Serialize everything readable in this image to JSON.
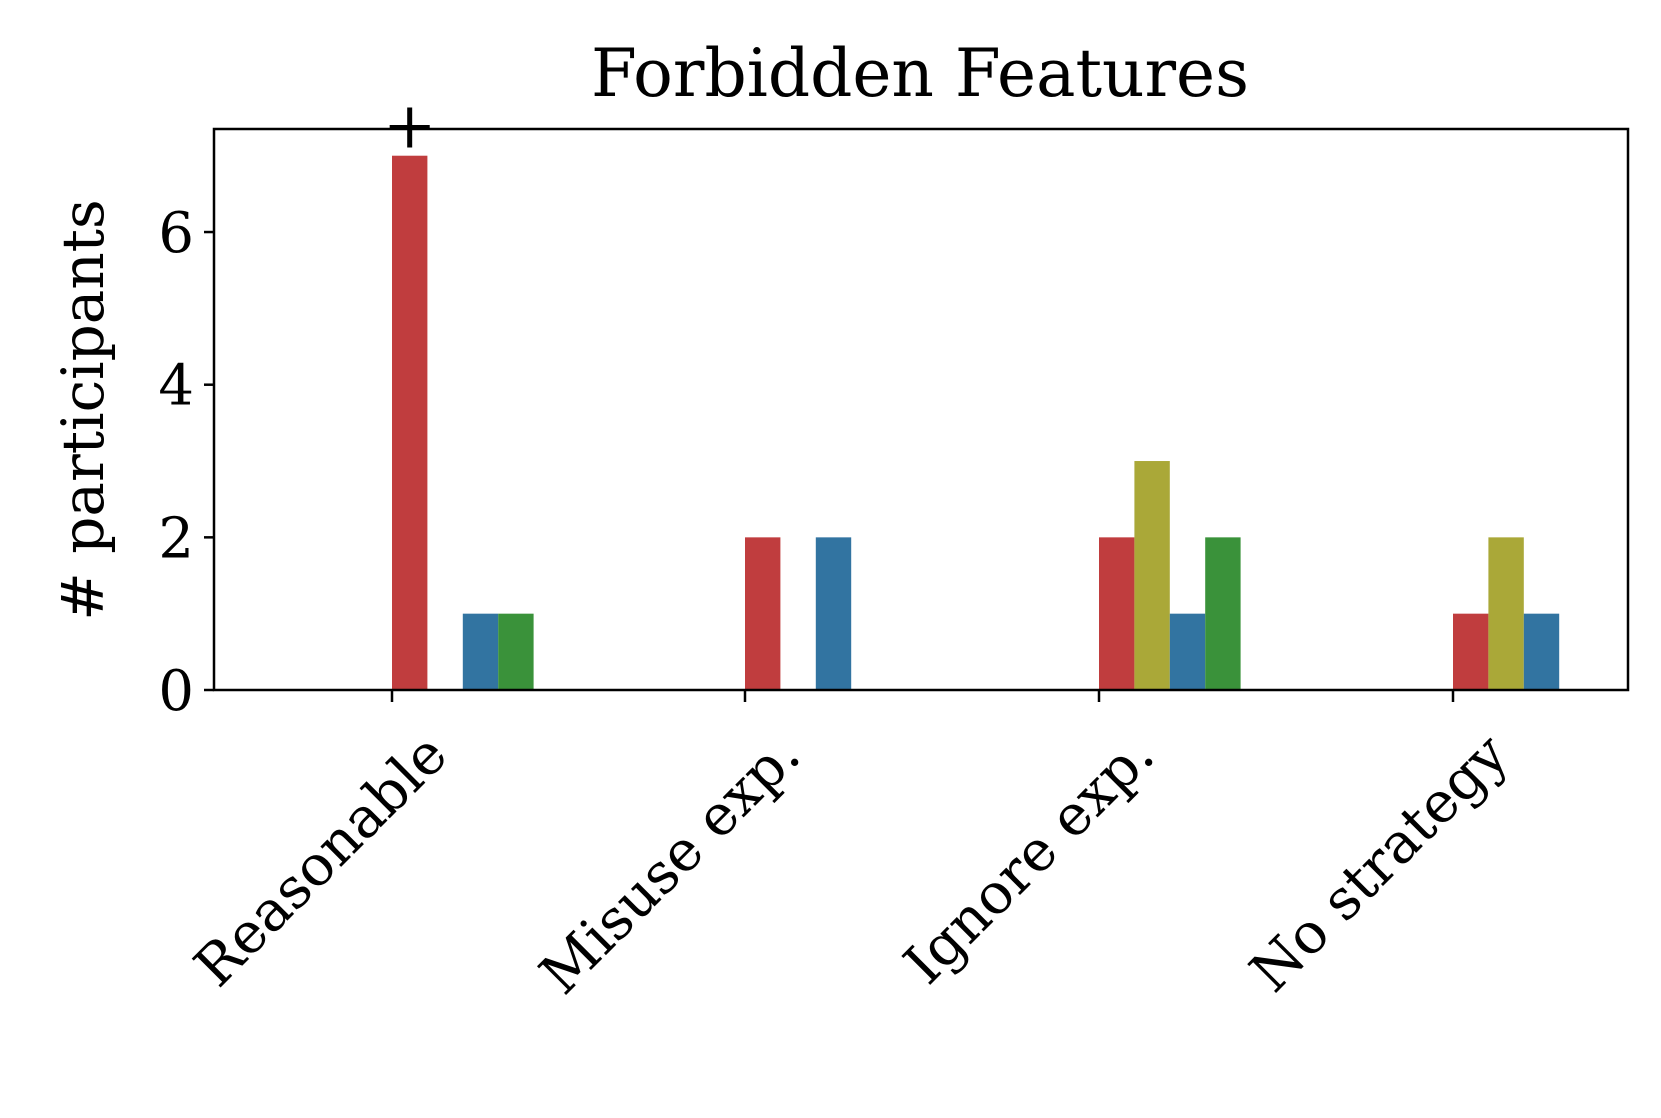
{
  "chart_data": {
    "type": "bar",
    "title": "Forbidden Features",
    "xlabel": "",
    "ylabel": "# participants",
    "categories": [
      "Reasonable",
      "Misuse exp.",
      "Ignore exp.",
      "No strategy"
    ],
    "series": [
      {
        "color": "#c03d3e",
        "values": [
          7,
          2,
          2,
          1
        ]
      },
      {
        "color": "#aaa838",
        "values": [
          0,
          0,
          3,
          2
        ]
      },
      {
        "color": "#3274a1",
        "values": [
          1,
          2,
          1,
          1
        ]
      },
      {
        "color": "#3a923a",
        "values": [
          1,
          0,
          2,
          0
        ]
      }
    ],
    "ylim": [
      0,
      7.35
    ],
    "yticks": [
      "0",
      "2",
      "4",
      "6"
    ],
    "annotations": [
      {
        "category": "Reasonable",
        "series_index": 0,
        "text": "+"
      }
    ],
    "grid": false,
    "legend": "none"
  }
}
